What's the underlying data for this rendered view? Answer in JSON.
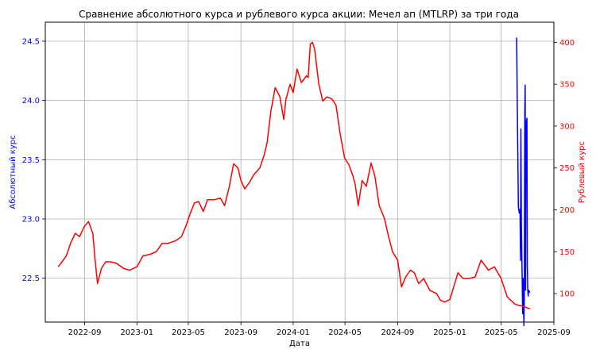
{
  "chart_data": {
    "type": "line",
    "title": "Сравнение абсолютного курса и рублевого курса акции: Мечел ап (MTLRP) за три года",
    "xlabel": "Дата",
    "ylabel_left": "Абсолютный курс",
    "ylabel_right": "Рублевый курс",
    "left_color": "#0000ff",
    "right_color": "#ff0000",
    "grid": true,
    "x_ticks": [
      "2022-09",
      "2023-01",
      "2023-05",
      "2023-09",
      "2024-01",
      "2024-05",
      "2024-09",
      "2025-01",
      "2025-05",
      "2025-09"
    ],
    "x_range": [
      "2022-06-01",
      "2025-09-01"
    ],
    "y_left_ticks": [
      "22.5",
      "23.0",
      "23.5",
      "24.0",
      "24.5"
    ],
    "y_left_range": [
      22.13,
      24.66
    ],
    "y_right_ticks": [
      "100",
      "150",
      "200",
      "250",
      "300",
      "350",
      "400"
    ],
    "y_right_range": [
      66,
      424
    ],
    "series": [
      {
        "axis": "left",
        "color": "#0000ff",
        "x": [
          "2025-06-06",
          "2025-06-10",
          "2025-06-12",
          "2025-06-14",
          "2025-06-15",
          "2025-06-16",
          "2025-06-17",
          "2025-06-19",
          "2025-06-20",
          "2025-06-21",
          "2025-06-23",
          "2025-06-24",
          "2025-06-25",
          "2025-06-26",
          "2025-06-27",
          "2025-06-28",
          "2025-06-30",
          "2025-07-01",
          "2025-07-02",
          "2025-07-03",
          "2025-07-04",
          "2025-07-07"
        ],
        "values": [
          24.53,
          23.1,
          23.05,
          23.08,
          22.65,
          23.76,
          22.95,
          22.5,
          22.2,
          22.5,
          22.1,
          22.35,
          23.9,
          24.13,
          22.4,
          23.8,
          23.85,
          22.6,
          22.4,
          22.35,
          22.4,
          22.38
        ]
      },
      {
        "axis": "right",
        "color": "#ff0000",
        "x": [
          "2022-07-01",
          "2022-07-10",
          "2022-07-20",
          "2022-07-30",
          "2022-08-10",
          "2022-08-20",
          "2022-08-31",
          "2022-09-10",
          "2022-09-20",
          "2022-09-25",
          "2022-10-01",
          "2022-10-10",
          "2022-10-20",
          "2022-11-01",
          "2022-11-15",
          "2022-12-01",
          "2022-12-15",
          "2023-01-01",
          "2023-01-15",
          "2023-02-01",
          "2023-02-15",
          "2023-03-01",
          "2023-03-15",
          "2023-04-01",
          "2023-04-15",
          "2023-04-25",
          "2023-05-05",
          "2023-05-15",
          "2023-05-25",
          "2023-06-05",
          "2023-06-15",
          "2023-07-01",
          "2023-07-15",
          "2023-07-25",
          "2023-08-05",
          "2023-08-15",
          "2023-08-25",
          "2023-09-01",
          "2023-09-10",
          "2023-09-20",
          "2023-10-01",
          "2023-10-15",
          "2023-10-25",
          "2023-11-01",
          "2023-11-10",
          "2023-11-20",
          "2023-12-01",
          "2023-12-10",
          "2023-12-15",
          "2023-12-25",
          "2024-01-01",
          "2024-01-10",
          "2024-01-20",
          "2024-01-25",
          "2024-02-01",
          "2024-02-05",
          "2024-02-10",
          "2024-02-15",
          "2024-02-20",
          "2024-03-01",
          "2024-03-10",
          "2024-03-20",
          "2024-04-01",
          "2024-04-10",
          "2024-04-20",
          "2024-04-30",
          "2024-05-10",
          "2024-05-20",
          "2024-05-25",
          "2024-06-01",
          "2024-06-10",
          "2024-06-20",
          "2024-07-01",
          "2024-07-10",
          "2024-07-20",
          "2024-08-01",
          "2024-08-10",
          "2024-08-20",
          "2024-09-01",
          "2024-09-10",
          "2024-09-20",
          "2024-10-01",
          "2024-10-10",
          "2024-10-20",
          "2024-11-01",
          "2024-11-15",
          "2024-12-01",
          "2024-12-10",
          "2024-12-20",
          "2025-01-01",
          "2025-01-10",
          "2025-01-20",
          "2025-02-01",
          "2025-02-15",
          "2025-03-01",
          "2025-03-15",
          "2025-04-01",
          "2025-04-15",
          "2025-05-01",
          "2025-05-15",
          "2025-06-01",
          "2025-06-10",
          "2025-06-20",
          "2025-07-01",
          "2025-07-07"
        ],
        "values": [
          132,
          138,
          145,
          160,
          172,
          168,
          180,
          186,
          172,
          142,
          112,
          130,
          138,
          138,
          136,
          130,
          128,
          132,
          145,
          147,
          150,
          160,
          160,
          163,
          168,
          180,
          195,
          208,
          210,
          198,
          212,
          212,
          214,
          205,
          228,
          255,
          250,
          235,
          225,
          232,
          242,
          250,
          265,
          280,
          318,
          346,
          335,
          308,
          332,
          350,
          340,
          368,
          352,
          355,
          360,
          358,
          398,
          400,
          392,
          350,
          330,
          335,
          332,
          325,
          290,
          262,
          254,
          240,
          230,
          205,
          235,
          228,
          256,
          240,
          205,
          190,
          170,
          150,
          140,
          108,
          120,
          128,
          125,
          112,
          118,
          104,
          100,
          92,
          90,
          93,
          108,
          125,
          118,
          118,
          120,
          140,
          128,
          132,
          118,
          96,
          88,
          86,
          85,
          83,
          82
        ]
      }
    ]
  }
}
